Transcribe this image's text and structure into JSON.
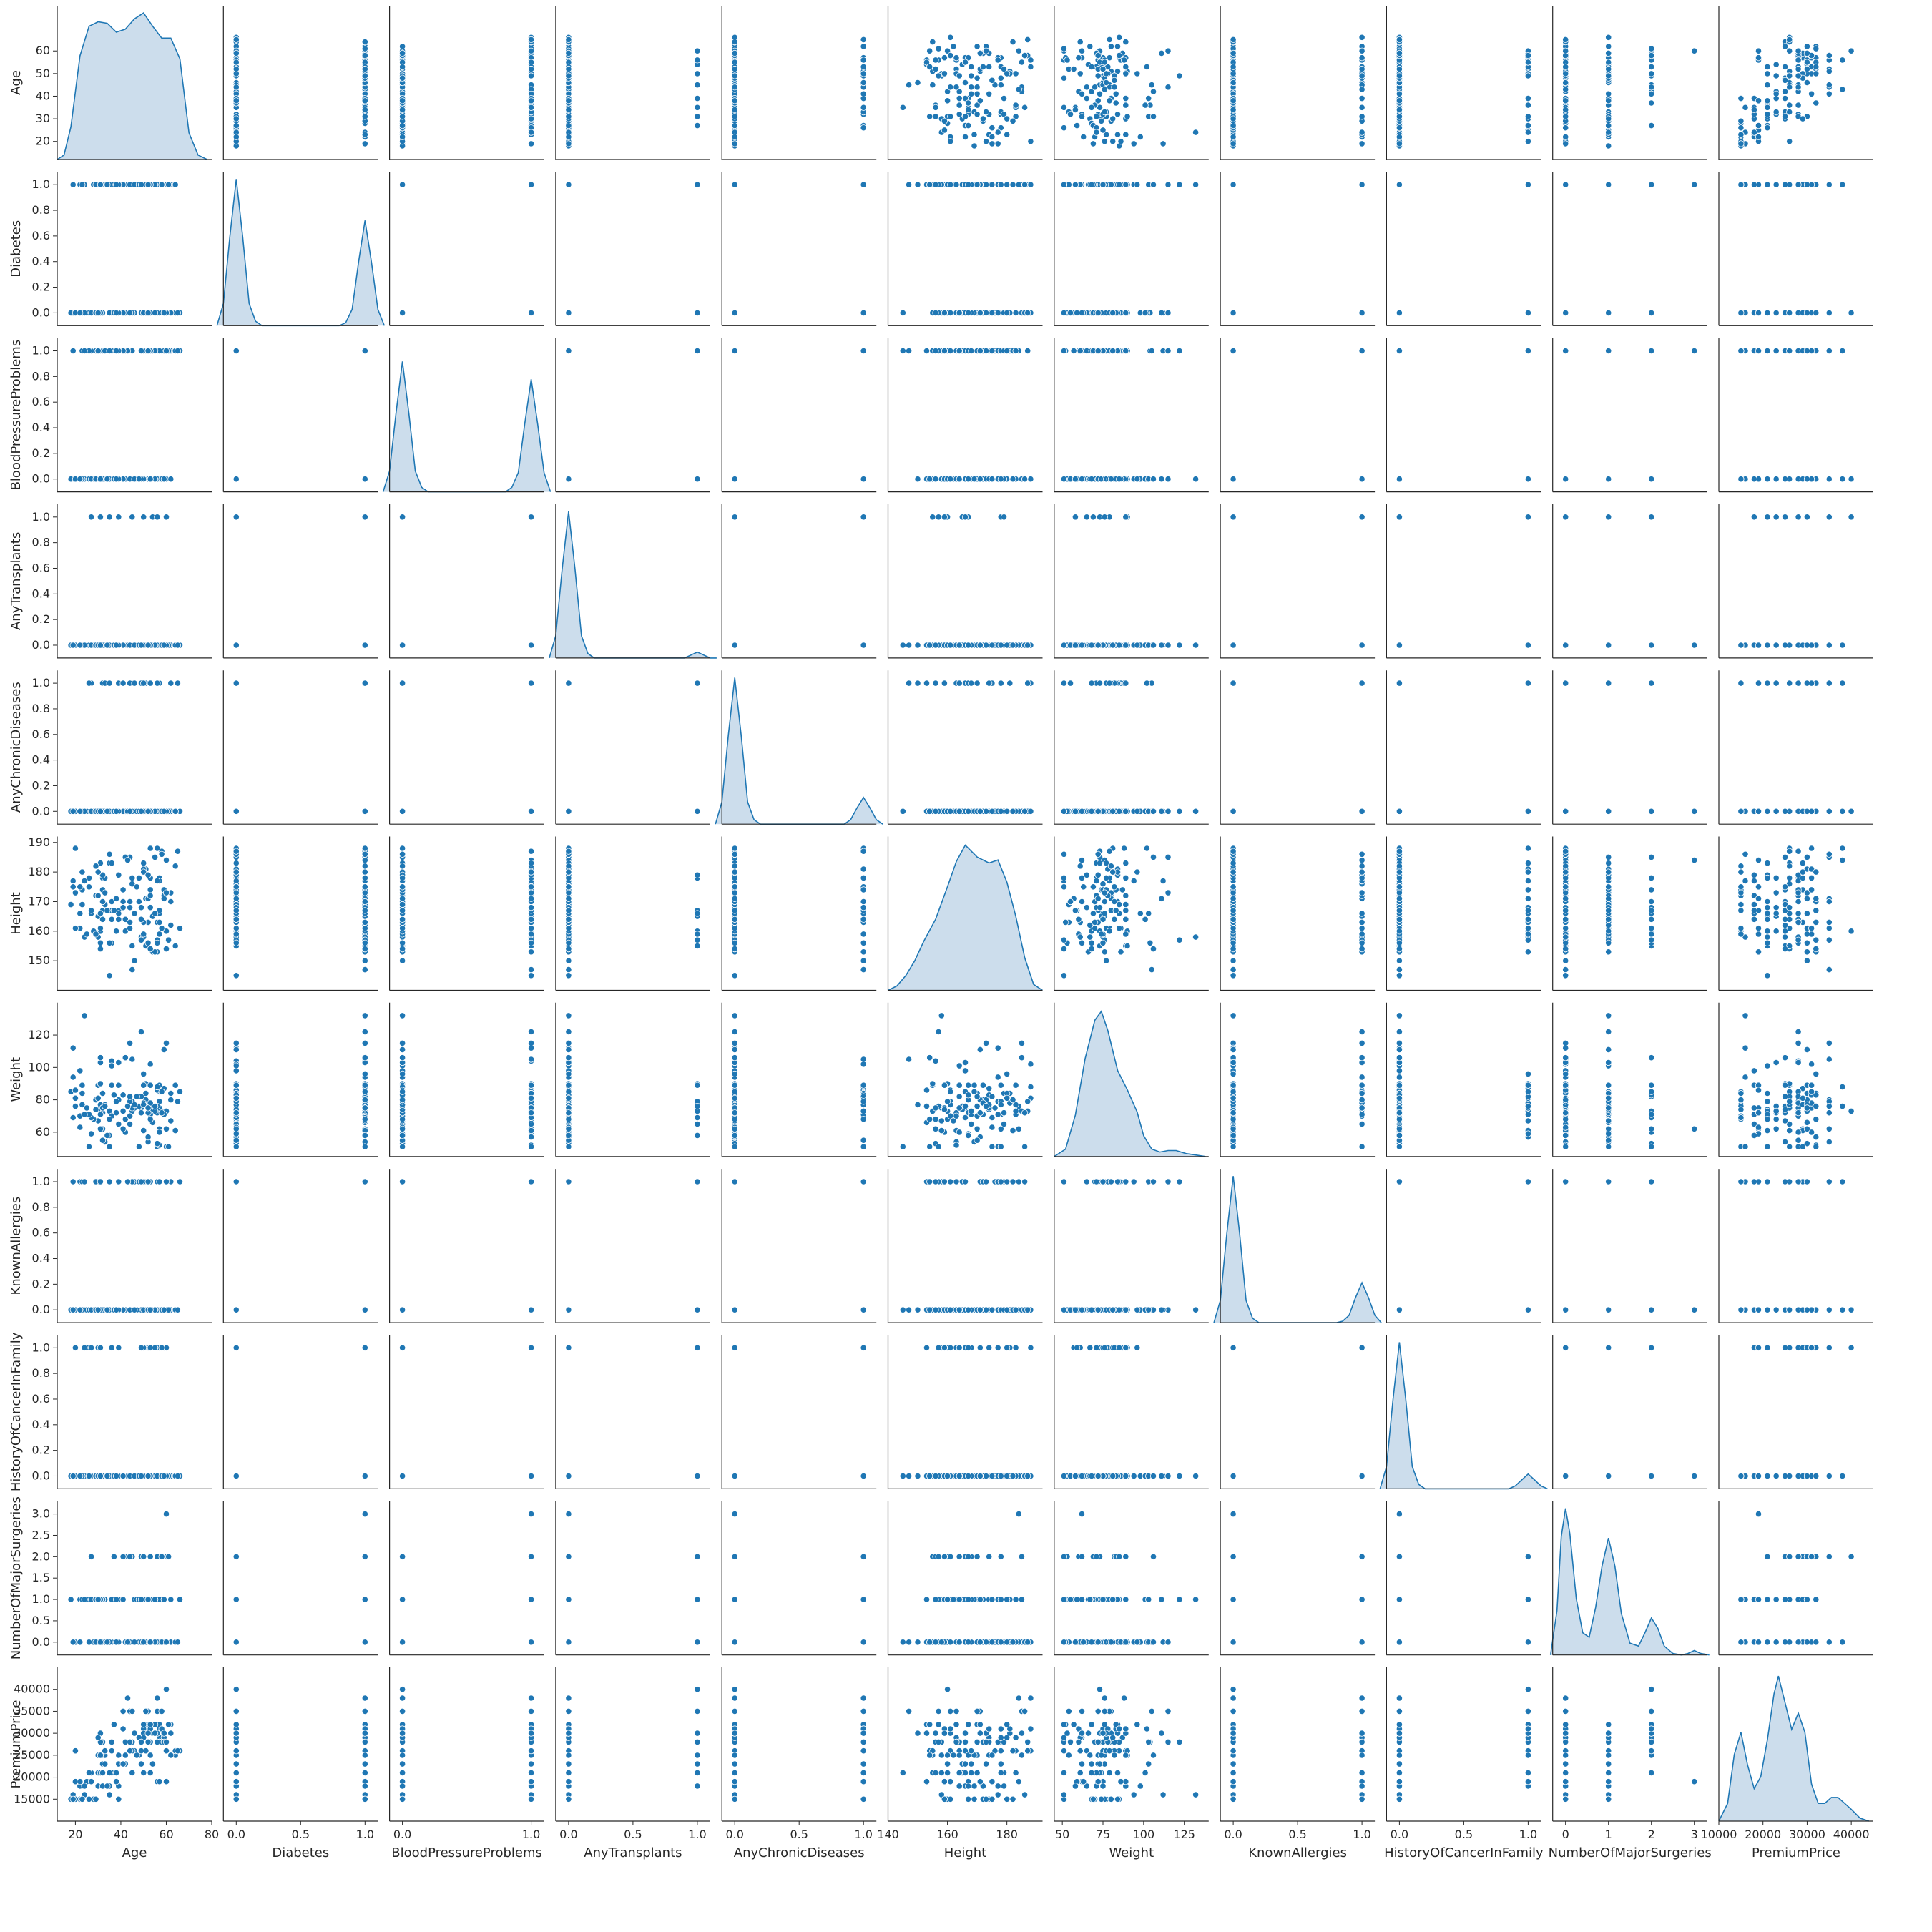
{
  "chart_data": {
    "type": "scatter",
    "kind": "pairplot",
    "diagonal": "kde",
    "color": "#1f77b4",
    "kde_fill": "#c6d9ea",
    "variables": [
      "Age",
      "Diabetes",
      "BloodPressureProblems",
      "AnyTransplants",
      "AnyChronicDiseases",
      "Height",
      "Weight",
      "KnownAllergies",
      "HistoryOfCancerInFamily",
      "NumberOfMajorSurgeries",
      "PremiumPrice"
    ],
    "axes": [
      {
        "name": "Age",
        "range": [
          18,
          66
        ],
        "lim": [
          12,
          80
        ],
        "ticks": [
          20,
          30,
          40,
          50,
          60
        ],
        "xticks": [
          20,
          40,
          60,
          80
        ],
        "kind": "cont"
      },
      {
        "name": "Diabetes",
        "range": [
          0,
          1
        ],
        "lim": [
          -0.1,
          1.1
        ],
        "ticks": [
          0.0,
          0.2,
          0.4,
          0.6,
          0.8,
          1.0
        ],
        "xticks": [
          0.0,
          0.5,
          1.0
        ],
        "kind": "binary"
      },
      {
        "name": "BloodPressureProblems",
        "range": [
          0,
          1
        ],
        "lim": [
          -0.1,
          1.1
        ],
        "ticks": [
          0.0,
          0.2,
          0.4,
          0.6,
          0.8,
          1.0
        ],
        "xticks": [
          0.0,
          1.0
        ],
        "kind": "binary"
      },
      {
        "name": "AnyTransplants",
        "range": [
          0,
          1
        ],
        "lim": [
          -0.1,
          1.1
        ],
        "ticks": [
          0.0,
          0.2,
          0.4,
          0.6,
          0.8,
          1.0
        ],
        "xticks": [
          0.0,
          0.5,
          1.0
        ],
        "kind": "binary"
      },
      {
        "name": "AnyChronicDiseases",
        "range": [
          0,
          1
        ],
        "lim": [
          -0.1,
          1.1
        ],
        "ticks": [
          0.0,
          0.2,
          0.4,
          0.6,
          0.8,
          1.0
        ],
        "xticks": [
          0.0,
          0.5,
          1.0
        ],
        "kind": "binary"
      },
      {
        "name": "Height",
        "range": [
          145,
          188
        ],
        "lim": [
          140,
          192
        ],
        "ticks": [
          150,
          160,
          170,
          180,
          190
        ],
        "xticks": [
          140,
          160,
          180
        ],
        "kind": "cont"
      },
      {
        "name": "Weight",
        "range": [
          51,
          132
        ],
        "lim": [
          45,
          140
        ],
        "ticks": [
          60,
          80,
          100,
          120
        ],
        "xticks": [
          50,
          75,
          100,
          125
        ],
        "kind": "cont"
      },
      {
        "name": "KnownAllergies",
        "range": [
          0,
          1
        ],
        "lim": [
          -0.1,
          1.1
        ],
        "ticks": [
          0.0,
          0.2,
          0.4,
          0.6,
          0.8,
          1.0
        ],
        "xticks": [
          0.0,
          0.5,
          1.0
        ],
        "kind": "binary"
      },
      {
        "name": "HistoryOfCancerInFamily",
        "range": [
          0,
          1
        ],
        "lim": [
          -0.1,
          1.1
        ],
        "ticks": [
          0.0,
          0.2,
          0.4,
          0.6,
          0.8,
          1.0
        ],
        "xticks": [
          0.0,
          0.5,
          1.0
        ],
        "kind": "binary"
      },
      {
        "name": "NumberOfMajorSurgeries",
        "range": [
          0,
          3
        ],
        "lim": [
          -0.3,
          3.3
        ],
        "ticks": [
          0.0,
          0.5,
          1.0,
          1.5,
          2.0,
          2.5,
          3.0
        ],
        "xticks": [
          0,
          1,
          2,
          3
        ],
        "kind": "discrete",
        "values": [
          0,
          1,
          2,
          3
        ]
      },
      {
        "name": "PremiumPrice",
        "range": [
          15000,
          40000
        ],
        "lim": [
          10000,
          45000
        ],
        "ticks": [
          15000,
          20000,
          25000,
          30000,
          35000,
          40000
        ],
        "xticks": [
          10000,
          20000,
          30000,
          40000
        ],
        "kind": "cont"
      }
    ],
    "diagonal_kde": [
      {
        "x": [
          12,
          15,
          18,
          22,
          26,
          30,
          34,
          38,
          42,
          46,
          50,
          54,
          58,
          62,
          66,
          70,
          74,
          78
        ],
        "density": [
          0.0,
          0.03,
          0.22,
          0.7,
          0.9,
          0.93,
          0.92,
          0.86,
          0.88,
          0.95,
          0.99,
          0.9,
          0.82,
          0.82,
          0.68,
          0.18,
          0.03,
          0.0
        ]
      },
      {
        "x": [
          -0.15,
          -0.1,
          -0.05,
          0.0,
          0.05,
          0.1,
          0.15,
          0.2,
          0.3,
          0.5,
          0.7,
          0.8,
          0.85,
          0.9,
          0.95,
          1.0,
          1.05,
          1.1,
          1.15
        ],
        "density": [
          0.0,
          0.15,
          0.6,
          0.99,
          0.6,
          0.15,
          0.03,
          0.0,
          0.0,
          0.0,
          0.0,
          0.0,
          0.02,
          0.11,
          0.43,
          0.71,
          0.43,
          0.11,
          0.0
        ]
      },
      {
        "x": [
          -0.15,
          -0.1,
          -0.05,
          0.0,
          0.05,
          0.1,
          0.15,
          0.2,
          0.3,
          0.5,
          0.7,
          0.8,
          0.85,
          0.9,
          0.95,
          1.0,
          1.05,
          1.1,
          1.15
        ],
        "density": [
          0.0,
          0.14,
          0.53,
          0.88,
          0.53,
          0.14,
          0.03,
          0.0,
          0.0,
          0.0,
          0.0,
          0.0,
          0.03,
          0.13,
          0.46,
          0.76,
          0.46,
          0.13,
          0.0
        ]
      },
      {
        "x": [
          -0.15,
          -0.1,
          -0.05,
          0.0,
          0.05,
          0.1,
          0.15,
          0.2,
          0.3,
          0.5,
          0.7,
          0.8,
          0.85,
          0.9,
          0.95,
          1.0,
          1.05,
          1.1,
          1.15
        ],
        "density": [
          0.0,
          0.15,
          0.6,
          0.99,
          0.6,
          0.15,
          0.03,
          0.0,
          0.0,
          0.0,
          0.0,
          0.0,
          0.0,
          0.0,
          0.02,
          0.04,
          0.02,
          0.0,
          0.0
        ]
      },
      {
        "x": [
          -0.15,
          -0.1,
          -0.05,
          0.0,
          0.05,
          0.1,
          0.15,
          0.2,
          0.3,
          0.5,
          0.7,
          0.8,
          0.85,
          0.9,
          0.95,
          1.0,
          1.05,
          1.1,
          1.15
        ],
        "density": [
          0.0,
          0.15,
          0.6,
          0.99,
          0.6,
          0.15,
          0.03,
          0.0,
          0.0,
          0.0,
          0.0,
          0.0,
          0.0,
          0.03,
          0.11,
          0.18,
          0.11,
          0.03,
          0.0
        ]
      },
      {
        "x": [
          140,
          143,
          146,
          149,
          152,
          156,
          160,
          163,
          166,
          170,
          174,
          177,
          180,
          183,
          186,
          189,
          192
        ],
        "density": [
          0.0,
          0.03,
          0.1,
          0.2,
          0.33,
          0.48,
          0.7,
          0.87,
          0.98,
          0.9,
          0.86,
          0.88,
          0.73,
          0.5,
          0.22,
          0.04,
          0.0
        ]
      },
      {
        "x": [
          45,
          52,
          58,
          64,
          70,
          74,
          78,
          84,
          90,
          96,
          100,
          105,
          110,
          115,
          120,
          126,
          132,
          138
        ],
        "density": [
          0.0,
          0.05,
          0.28,
          0.66,
          0.92,
          0.98,
          0.85,
          0.58,
          0.45,
          0.3,
          0.14,
          0.05,
          0.03,
          0.04,
          0.04,
          0.02,
          0.01,
          0.0
        ]
      },
      {
        "x": [
          -0.15,
          -0.1,
          -0.05,
          0.0,
          0.05,
          0.1,
          0.15,
          0.2,
          0.3,
          0.5,
          0.7,
          0.8,
          0.85,
          0.9,
          0.95,
          1.0,
          1.05,
          1.1,
          1.15
        ],
        "density": [
          0.0,
          0.15,
          0.6,
          0.99,
          0.6,
          0.15,
          0.03,
          0.0,
          0.0,
          0.0,
          0.0,
          0.0,
          0.01,
          0.05,
          0.17,
          0.27,
          0.17,
          0.05,
          0.0
        ]
      },
      {
        "x": [
          -0.15,
          -0.1,
          -0.05,
          0.0,
          0.05,
          0.1,
          0.15,
          0.2,
          0.3,
          0.5,
          0.7,
          0.8,
          0.85,
          0.9,
          0.95,
          1.0,
          1.05,
          1.1,
          1.15
        ],
        "density": [
          0.0,
          0.15,
          0.6,
          0.99,
          0.6,
          0.15,
          0.03,
          0.0,
          0.0,
          0.0,
          0.0,
          0.0,
          0.0,
          0.02,
          0.06,
          0.1,
          0.06,
          0.02,
          0.0
        ]
      },
      {
        "x": [
          -0.35,
          -0.2,
          -0.1,
          0.0,
          0.1,
          0.25,
          0.4,
          0.55,
          0.7,
          0.85,
          1.0,
          1.15,
          1.3,
          1.5,
          1.7,
          1.85,
          2.0,
          2.15,
          2.3,
          2.5,
          2.7,
          2.85,
          3.0,
          3.15,
          3.35
        ],
        "density": [
          0.0,
          0.3,
          0.8,
          0.99,
          0.82,
          0.38,
          0.15,
          0.12,
          0.32,
          0.6,
          0.79,
          0.6,
          0.28,
          0.08,
          0.06,
          0.15,
          0.25,
          0.18,
          0.06,
          0.01,
          0.0,
          0.01,
          0.03,
          0.01,
          0.0
        ]
      },
      {
        "x": [
          10000,
          12000,
          13500,
          15000,
          16500,
          18000,
          19500,
          21000,
          22500,
          23500,
          25000,
          26500,
          28000,
          29500,
          31000,
          32500,
          34000,
          35500,
          37000,
          38500,
          40000,
          42000,
          44000
        ],
        "density": [
          0.0,
          0.12,
          0.45,
          0.6,
          0.38,
          0.22,
          0.3,
          0.55,
          0.86,
          0.98,
          0.8,
          0.62,
          0.73,
          0.6,
          0.25,
          0.12,
          0.12,
          0.16,
          0.16,
          0.12,
          0.08,
          0.02,
          0.0
        ]
      }
    ],
    "patterns": {
      "PremiumPrice_levels": [
        15000,
        16000,
        18000,
        19000,
        21000,
        23000,
        25000,
        26000,
        28000,
        29000,
        30000,
        31000,
        32000,
        35000,
        38000,
        39000,
        40000
      ],
      "NumberOfMajorSurgeries_min_age": [
        18,
        18,
        25,
        59
      ],
      "AnyChronicDiseases_min_age": 25
    }
  }
}
